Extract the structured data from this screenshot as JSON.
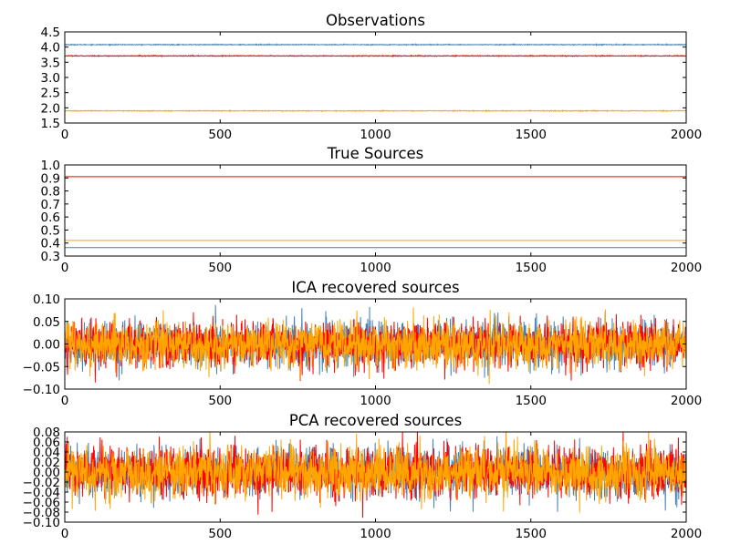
{
  "chart_data": [
    {
      "type": "line",
      "title": "Observations",
      "xlim": [
        0,
        2000
      ],
      "ylim": [
        1.5,
        4.5
      ],
      "xticks": [
        0,
        500,
        1000,
        1500,
        2000
      ],
      "yticks": [
        "1.5",
        "2.0",
        "2.5",
        "3.0",
        "3.5",
        "4.0",
        "4.5"
      ],
      "grid": false,
      "series": [
        {
          "color": "#4682b4",
          "level": 4.08,
          "noise": 0.025
        },
        {
          "color": "#ff0000",
          "level": 3.71,
          "noise": 0.025
        },
        {
          "color": "#ffa500",
          "level": 1.9,
          "noise": 0.025
        }
      ]
    },
    {
      "type": "line",
      "title": "True Sources",
      "xlim": [
        0,
        2000
      ],
      "ylim": [
        0.3,
        1.0
      ],
      "xticks": [
        0,
        500,
        1000,
        1500,
        2000
      ],
      "yticks": [
        "0.3",
        "0.4",
        "0.5",
        "0.6",
        "0.7",
        "0.8",
        "0.9",
        "1.0"
      ],
      "grid": false,
      "series": [
        {
          "color": "#4682b4",
          "level": 0.365,
          "noise": 0
        },
        {
          "color": "#ff0000",
          "level": 0.91,
          "noise": 0
        },
        {
          "color": "#ffa500",
          "level": 0.42,
          "noise": 0
        }
      ]
    },
    {
      "type": "line",
      "title": "ICA recovered sources",
      "xlim": [
        0,
        2000
      ],
      "ylim": [
        -0.1,
        0.1
      ],
      "xticks": [
        0,
        500,
        1000,
        1500,
        2000
      ],
      "yticks": [
        "−0.10",
        "−0.05",
        "0.00",
        "0.05",
        "0.10"
      ],
      "grid": false,
      "series": [
        {
          "color": "#4682b4",
          "level": 0,
          "noise": 0.025
        },
        {
          "color": "#ff0000",
          "level": 0,
          "noise": 0.025
        },
        {
          "color": "#ffa500",
          "level": 0,
          "noise": 0.025
        }
      ]
    },
    {
      "type": "line",
      "title": "PCA recovered sources",
      "xlim": [
        0,
        2000
      ],
      "ylim": [
        -0.1,
        0.08
      ],
      "xticks": [
        0,
        500,
        1000,
        1500,
        2000
      ],
      "yticks": [
        "−0.10",
        "−0.08",
        "−0.06",
        "−0.04",
        "−0.02",
        "0.00",
        "0.02",
        "0.04",
        "0.06",
        "0.08"
      ],
      "grid": false,
      "series": [
        {
          "color": "#4682b4",
          "level": 0,
          "noise": 0.025
        },
        {
          "color": "#ff0000",
          "level": 0,
          "noise": 0.025
        },
        {
          "color": "#ffa500",
          "level": 0,
          "noise": 0.025
        }
      ]
    }
  ]
}
